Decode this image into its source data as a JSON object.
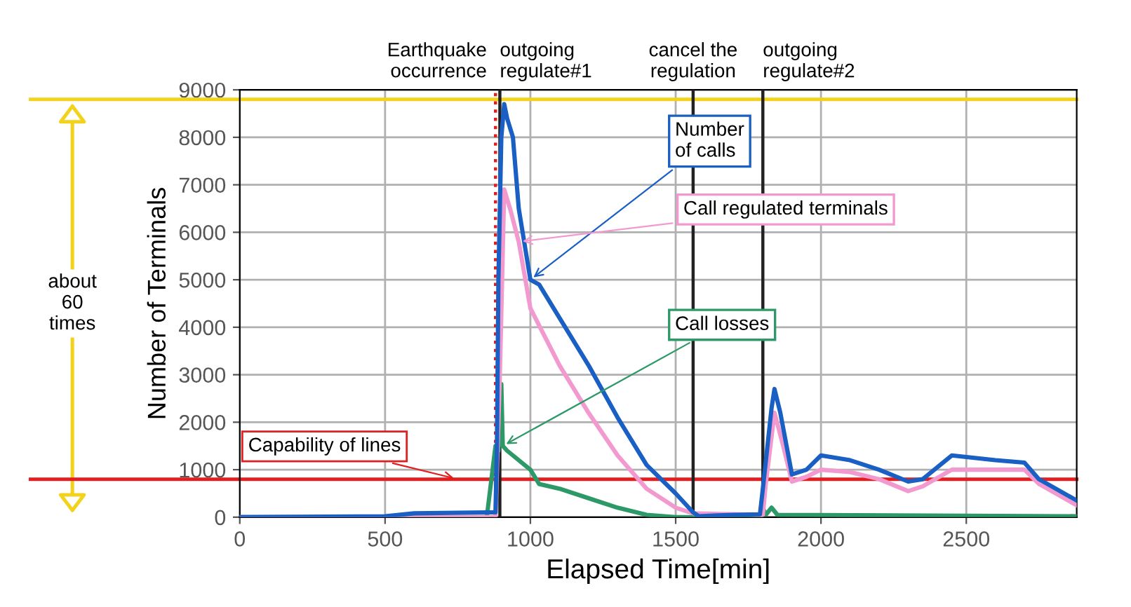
{
  "chart_data": {
    "type": "line",
    "xlabel": "Elapsed Time[min]",
    "ylabel": "Number of Terminals",
    "xlim": [
      0,
      2880
    ],
    "xticks": [
      0,
      500,
      1000,
      1500,
      2000,
      2500
    ],
    "ylim": [
      0,
      9000
    ],
    "yticks": [
      0,
      1000,
      2000,
      3000,
      4000,
      5000,
      6000,
      7000,
      8000,
      9000
    ],
    "grid": true,
    "legend": false,
    "marker": "none",
    "line_style": "solid",
    "annotations": [
      "about 60 times"
    ],
    "ref_lines": [
      {
        "axis": "x",
        "value": 880,
        "label": "Earthquake\noccurrence",
        "color": "#e02020",
        "line_style": "dotted"
      },
      {
        "axis": "x",
        "value": 895,
        "label": "outgoing\nregulate#1",
        "color": "#222222",
        "line_style": "solid"
      },
      {
        "axis": "x",
        "value": 1560,
        "label": "cancel the\nregulation",
        "color": "#222222",
        "line_style": "solid"
      },
      {
        "axis": "x",
        "value": 1800,
        "label": "outgoing\nregulate#2",
        "color": "#222222",
        "line_style": "solid"
      },
      {
        "axis": "y",
        "value": 800,
        "label": "Capability of lines",
        "color": "#e02020",
        "line_style": "solid"
      },
      {
        "axis": "y",
        "value": 8800,
        "label": null,
        "color": "#f2d21a",
        "line_style": "solid"
      }
    ],
    "series": [
      {
        "name": "Number\nof calls",
        "color": "#1a5fc4",
        "x": [
          0,
          500,
          600,
          850,
          880,
          885,
          890,
          900,
          910,
          920,
          940,
          960,
          1000,
          1030,
          1100,
          1200,
          1300,
          1400,
          1500,
          1560,
          1580,
          1700,
          1790,
          1800,
          1830,
          1840,
          1860,
          1900,
          1950,
          2000,
          2100,
          2200,
          2300,
          2350,
          2450,
          2600,
          2700,
          2750,
          2880
        ],
        "values": [
          0,
          20,
          80,
          100,
          100,
          1500,
          5000,
          8000,
          8700,
          8400,
          8000,
          6500,
          5000,
          4900,
          4200,
          3200,
          2100,
          1100,
          500,
          100,
          20,
          50,
          60,
          600,
          2300,
          2700,
          2200,
          900,
          1000,
          1300,
          1200,
          1000,
          750,
          800,
          1300,
          1200,
          1150,
          800,
          350
        ]
      },
      {
        "name": "Call regulated terminals",
        "color": "#f29ad0",
        "x": [
          0,
          880,
          895,
          910,
          930,
          960,
          1000,
          1100,
          1200,
          1300,
          1400,
          1500,
          1560,
          1800,
          1810,
          1840,
          1870,
          1900,
          1950,
          2000,
          2100,
          2200,
          2300,
          2350,
          2450,
          2700,
          2750,
          2880
        ],
        "values": [
          0,
          0,
          3000,
          6900,
          6500,
          5800,
          4400,
          3200,
          2200,
          1300,
          600,
          200,
          80,
          50,
          700,
          2200,
          1500,
          750,
          850,
          1000,
          950,
          800,
          550,
          650,
          1000,
          1000,
          700,
          250
        ]
      },
      {
        "name": "Call losses",
        "color": "#2e9968",
        "x": [
          0,
          850,
          880,
          890,
          900,
          905,
          920,
          1000,
          1030,
          1100,
          1200,
          1300,
          1400,
          1500,
          1790,
          1800,
          1810,
          1830,
          1850,
          2880
        ],
        "values": [
          0,
          0,
          1500,
          1400,
          2800,
          1500,
          1400,
          1000,
          700,
          600,
          400,
          200,
          50,
          0,
          0,
          200,
          50,
          200,
          50,
          20
        ]
      }
    ]
  }
}
